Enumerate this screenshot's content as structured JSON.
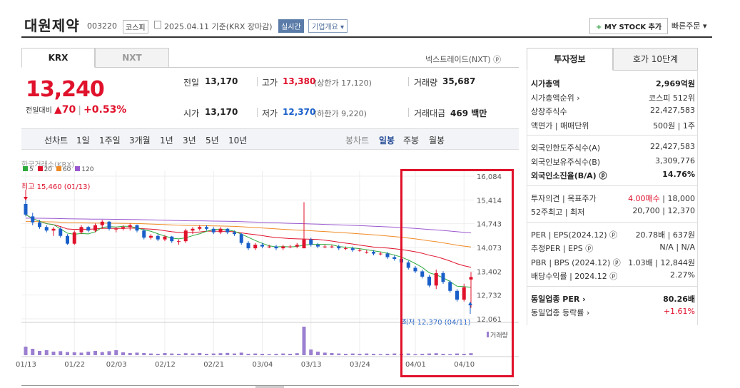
{
  "header": {
    "company": "대원제약",
    "code": "003220",
    "market_badge": "코스피",
    "date_text": "2025.04.11  기준(KRX 장마감)",
    "realtime_label": "실시간",
    "corp_overview_label": "기업개요 ▾",
    "mystock_plus": "+",
    "mystock_label": "MY STOCK 추가",
    "quick_order_label": "빠른주문 ▾"
  },
  "tabs": {
    "krx": "KRX",
    "nxt": "NXT"
  },
  "nxt_link": "넥스트레이드(NXT) ⓟ",
  "quote": {
    "price": "13,240",
    "change_label": "전일대비",
    "change_arrow": "▲",
    "change_value": "70",
    "change_sep": "|",
    "change_pct": "+0.53%",
    "prev_label": "전일",
    "prev_value": "13,170",
    "high_label": "고가",
    "high_value": "13,380",
    "upper_limit": "(상한가 17,120)",
    "volume_label": "거래량",
    "volume_value": "35,687",
    "open_label": "시가",
    "open_value": "13,170",
    "low_label": "저가",
    "low_value": "12,370",
    "lower_limit": "(하한가 9,220)",
    "amount_label": "거래대금",
    "amount_value": "469 백만"
  },
  "period": {
    "line_label": "선차트",
    "line_items": [
      "1일",
      "1주일",
      "3개월",
      "1년",
      "3년",
      "5년",
      "10년"
    ],
    "candle_label": "봉차트",
    "candle_items": [
      "일봉",
      "주봉",
      "월봉"
    ],
    "candle_selected": "일봉"
  },
  "chart_meta": {
    "source": "한국거래소(KRX)",
    "ma_legend": [
      {
        "name": "5",
        "color": "#2eaa3c"
      },
      {
        "name": "20",
        "color": "#e0112b"
      },
      {
        "name": "60",
        "color": "#f08a24"
      },
      {
        "name": "120",
        "color": "#9b59d0"
      }
    ],
    "high_note": "최고 15,460 (01/13)",
    "low_note": "최저 12,370 (04/11)",
    "volume_label": "거래량",
    "y_ticks": [
      "16,084",
      "15,414",
      "14,743",
      "14,073",
      "13,402",
      "12,732",
      "12,061"
    ],
    "x_ticks": [
      "01/13",
      "01/22",
      "02/03",
      "02/12",
      "02/21",
      "03/04",
      "03/13",
      "03/24",
      "04/01",
      "04/10"
    ]
  },
  "chart_data": {
    "type": "candlestick",
    "ylim": [
      12061,
      16084
    ],
    "candles": [
      [
        15300,
        15460,
        14950,
        15000
      ],
      [
        14950,
        15050,
        14700,
        14780
      ],
      [
        14780,
        14850,
        14600,
        14650
      ],
      [
        14650,
        14700,
        14500,
        14550
      ],
      [
        14550,
        14650,
        14400,
        14600
      ],
      [
        14600,
        14650,
        14350,
        14400
      ],
      [
        14400,
        14450,
        14150,
        14180
      ],
      [
        14180,
        14550,
        14150,
        14500
      ],
      [
        14500,
        14700,
        14450,
        14650
      ],
      [
        14650,
        14680,
        14500,
        14550
      ],
      [
        14550,
        14750,
        14500,
        14700
      ],
      [
        14700,
        14850,
        14600,
        14800
      ],
      [
        14800,
        14820,
        14550,
        14600
      ],
      [
        14600,
        14650,
        14500,
        14600
      ],
      [
        14600,
        14700,
        14550,
        14650
      ],
      [
        14650,
        14750,
        14550,
        14700
      ],
      [
        14700,
        14720,
        14500,
        14550
      ],
      [
        14550,
        14600,
        14300,
        14350
      ],
      [
        14350,
        14450,
        14300,
        14400
      ],
      [
        14400,
        14450,
        14250,
        14300
      ],
      [
        14300,
        14420,
        14250,
        14380
      ],
      [
        14380,
        14400,
        14200,
        14250
      ],
      [
        14250,
        14300,
        14150,
        14250
      ],
      [
        14250,
        14600,
        14200,
        14550
      ],
      [
        14550,
        14650,
        14450,
        14600
      ],
      [
        14600,
        14700,
        14550,
        14650
      ],
      [
        14650,
        14700,
        14550,
        14600
      ],
      [
        14600,
        14650,
        14450,
        14500
      ],
      [
        14500,
        14650,
        14450,
        14600
      ],
      [
        14600,
        14620,
        14450,
        14500
      ],
      [
        14500,
        14550,
        14400,
        14450
      ],
      [
        14450,
        14480,
        14150,
        14200
      ],
      [
        14200,
        14250,
        14000,
        14050
      ],
      [
        14050,
        14200,
        14000,
        14150
      ],
      [
        14150,
        14200,
        14050,
        14100
      ],
      [
        14100,
        14150,
        14050,
        14100
      ],
      [
        14100,
        14150,
        14000,
        14050
      ],
      [
        14050,
        14150,
        14000,
        14100
      ],
      [
        14100,
        14150,
        14050,
        14100
      ],
      [
        14100,
        14200,
        14050,
        14150
      ],
      [
        14050,
        15350,
        14050,
        14300
      ],
      [
        14300,
        14350,
        14100,
        14150
      ],
      [
        14150,
        14200,
        14050,
        14100
      ],
      [
        14100,
        14150,
        14050,
        14100
      ],
      [
        14100,
        14150,
        14050,
        14100
      ],
      [
        14100,
        14150,
        14000,
        14050
      ],
      [
        14050,
        14100,
        14000,
        14050
      ],
      [
        14050,
        14100,
        13950,
        14000
      ],
      [
        14000,
        14050,
        13950,
        14000
      ],
      [
        13950,
        14000,
        13900,
        13950
      ],
      [
        13950,
        14000,
        13850,
        13900
      ],
      [
        13900,
        13950,
        13850,
        13900
      ],
      [
        13900,
        13950,
        13750,
        13800
      ],
      [
        13800,
        13850,
        13700,
        13750
      ],
      [
        13750,
        14050,
        13600,
        13650
      ],
      [
        13650,
        13700,
        13450,
        13500
      ],
      [
        13500,
        13550,
        13350,
        13400
      ],
      [
        13400,
        13450,
        13200,
        13250
      ],
      [
        13250,
        13300,
        12950,
        13000
      ],
      [
        13000,
        13450,
        12900,
        13350
      ],
      [
        13350,
        13400,
        13050,
        13100
      ],
      [
        13100,
        13150,
        12800,
        12850
      ],
      [
        12850,
        12900,
        12550,
        12600
      ],
      [
        12600,
        13050,
        12550,
        12950
      ],
      [
        13170,
        13380,
        12370,
        13240
      ]
    ],
    "volume": [
      60,
      45,
      30,
      35,
      25,
      28,
      22,
      20,
      18,
      25,
      30,
      22,
      28,
      35,
      20,
      15,
      18,
      15,
      12,
      10,
      15,
      12,
      10,
      14,
      12,
      15,
      10,
      12,
      14,
      16,
      12,
      18,
      10,
      12,
      10,
      8,
      10,
      12,
      10,
      14,
      200,
      40,
      25,
      18,
      15,
      12,
      10,
      12,
      10,
      12,
      10,
      8,
      10,
      12,
      10,
      12,
      8,
      10,
      12,
      14,
      10,
      8,
      12,
      10,
      14
    ]
  },
  "right_panel": {
    "tab_invest": "투자정보",
    "tab_orderbook": "호가 10단계",
    "rows1": [
      {
        "label": "시가총액",
        "value": "2,969억원",
        "bold": true
      },
      {
        "label": "시가총액순위 ›",
        "value": "코스피 512위",
        "bold": false
      },
      {
        "label": "상장주식수",
        "value": "22,427,583",
        "bold": false
      },
      {
        "label": "액면가 | 매매단위",
        "value": "500원 | 1주",
        "bold": false
      }
    ],
    "rows2": [
      {
        "label": "외국인한도주식수(A)",
        "value": "22,427,583",
        "bold": false
      },
      {
        "label": "외국인보유주식수(B)",
        "value": "3,309,776",
        "bold": false
      },
      {
        "label": "외국인소진율(B/A) ⓟ",
        "value": "14.76%",
        "bold": true
      }
    ],
    "rows3": [
      {
        "label": "투자의견 | 목표주가",
        "value_red": "4.00매수",
        "value": " | 18,000"
      },
      {
        "label": "52주최고 | 최저",
        "value_red": "",
        "value": "20,700 | 12,370"
      }
    ],
    "rows4": [
      {
        "label": "PER | EPS(2024.12) ⓟ",
        "value": "20.78배 | 637원"
      },
      {
        "label": "추정PER | EPS ⓟ",
        "value": "N/A | N/A"
      },
      {
        "label": "PBR | BPS (2024.12) ⓟ",
        "value": "1.03배 | 12,844원"
      },
      {
        "label": "배당수익률 | 2024.12 ⓟ",
        "value": "2.27%"
      }
    ],
    "rows5": [
      {
        "label": "동일업종 PER ›",
        "value": "80.26배",
        "bold": true,
        "red": false
      },
      {
        "label": "동일업종 등락률 ›",
        "value": "+1.61%",
        "bold": false,
        "red": true
      }
    ]
  }
}
